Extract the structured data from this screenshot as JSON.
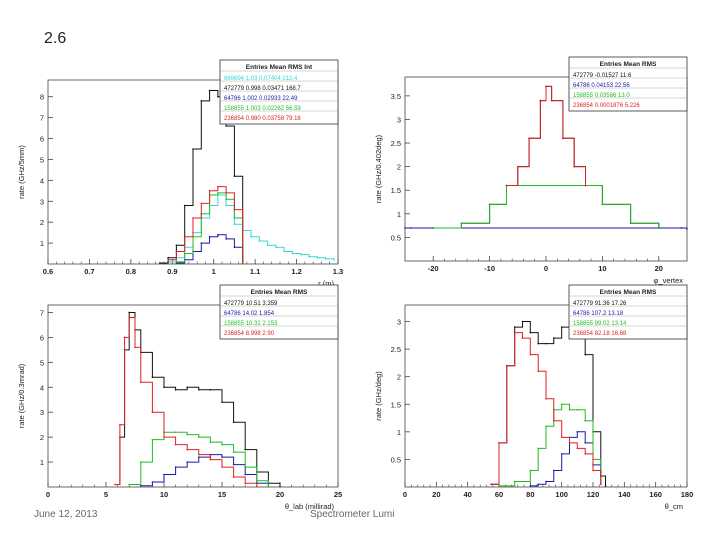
{
  "slide": {
    "title": "2.6",
    "date": "June 12, 2013",
    "footer_center": "Spectrometer Lumi"
  },
  "chart_data": [
    {
      "type": "line",
      "ylabel": "rate (GHz/5mm)",
      "xlabel": "r (m)",
      "xlim": [
        0.6,
        1.3
      ],
      "ylim": [
        0,
        8.8
      ],
      "xticks": [
        "0.6",
        "0.7",
        "0.8",
        "0.9",
        "1",
        "1.1",
        "1.2",
        "1.3"
      ],
      "yticks": [
        "1",
        "2",
        "3",
        "4",
        "5",
        "6",
        "7",
        "8"
      ],
      "stats_header": "Entries  Mean  RMS  Int",
      "series": [
        {
          "name": "cyan",
          "color": "#38d8d8",
          "stats": "669694  1.03  0.07404  212.4",
          "x": [
            0.89,
            0.91,
            0.93,
            0.95,
            0.97,
            0.99,
            1.01,
            1.03,
            1.05,
            1.07,
            1.09,
            1.11,
            1.13,
            1.15,
            1.17,
            1.19,
            1.21,
            1.23,
            1.25,
            1.27,
            1.29
          ],
          "y": [
            0.1,
            0.3,
            0.8,
            1.5,
            2.2,
            2.8,
            3.3,
            2.8,
            1.9,
            1.6,
            1.3,
            1.1,
            0.9,
            0.8,
            0.6,
            0.5,
            0.45,
            0.35,
            0.3,
            0.25,
            0.2
          ]
        },
        {
          "name": "black",
          "color": "#111111",
          "stats": "472779  0.998  0.03471  168.7",
          "x": [
            0.87,
            0.89,
            0.91,
            0.93,
            0.95,
            0.97,
            0.99,
            1.01,
            1.03,
            1.05,
            1.07
          ],
          "y": [
            0.05,
            0.3,
            0.9,
            2.8,
            5.5,
            7.8,
            8.3,
            8.0,
            6.6,
            4.2,
            0.1
          ]
        },
        {
          "name": "blue",
          "color": "#1a1aa8",
          "stats": "64786  1.002  0.02933  22.49",
          "x": [
            0.91,
            0.93,
            0.95,
            0.97,
            0.99,
            1.01,
            1.03,
            1.05,
            1.07
          ],
          "y": [
            0.05,
            0.2,
            0.6,
            1.0,
            1.3,
            1.4,
            1.2,
            0.8,
            0.05
          ]
        },
        {
          "name": "green",
          "color": "#22bb22",
          "stats": "158855  1.003  0.02262  56.59",
          "x": [
            0.91,
            0.93,
            0.95,
            0.97,
            0.99,
            1.01,
            1.03,
            1.05,
            1.07
          ],
          "y": [
            0.1,
            0.5,
            1.3,
            2.4,
            3.3,
            3.4,
            3.1,
            2.2,
            0.05
          ]
        },
        {
          "name": "red",
          "color": "#dd2222",
          "stats": "236854  0.980  0.03758  79.16",
          "x": [
            0.89,
            0.91,
            0.93,
            0.95,
            0.97,
            0.99,
            1.01,
            1.03,
            1.05,
            1.07
          ],
          "y": [
            0.2,
            0.6,
            1.3,
            2.2,
            2.9,
            3.5,
            3.7,
            3.4,
            2.6,
            0.05
          ]
        }
      ]
    },
    {
      "type": "line",
      "ylabel": "rate (GHz/0.402deg)",
      "xlabel": "φ_vertex",
      "xlim": [
        -25,
        25
      ],
      "ylim": [
        0,
        3.9
      ],
      "xticks": [
        "-20",
        "-10",
        "0",
        "10",
        "20"
      ],
      "yticks": [
        "0.5",
        "1",
        "1.5",
        "2",
        "2.5",
        "3",
        "3.5"
      ],
      "stats_header": "Entries  Mean  RMS",
      "series": [
        {
          "name": "black",
          "color": "#111111",
          "stats": "472779  -0.01527  11.6",
          "x": [
            -24,
            -20,
            -15,
            -10,
            -7,
            -5,
            -3,
            -1,
            0,
            1,
            3,
            5,
            7,
            10,
            15,
            20,
            24
          ],
          "y": [
            0.7,
            0.7,
            0.8,
            1.2,
            1.6,
            2.0,
            2.6,
            3.4,
            3.7,
            3.4,
            2.6,
            2.0,
            1.6,
            1.2,
            0.8,
            0.7,
            0.7
          ]
        },
        {
          "name": "blue",
          "color": "#1a1aa8",
          "stats": "64786  0.04153  22.56",
          "x": [
            -25,
            -20,
            20,
            25
          ],
          "y": [
            0.7,
            0.7,
            0.7,
            0.68
          ]
        },
        {
          "name": "green",
          "color": "#22bb22",
          "stats": "158855  0.03586  13.0",
          "x": [
            -20,
            -15,
            -10,
            -7,
            7,
            10,
            15,
            20
          ],
          "y": [
            0.7,
            0.8,
            1.2,
            1.6,
            1.6,
            1.2,
            0.8,
            0.7
          ]
        },
        {
          "name": "red",
          "color": "#dd2222",
          "stats": "236854  0.0001876  5.226",
          "x": [
            -7,
            -5,
            -3,
            -1,
            0,
            1,
            3,
            5,
            7
          ],
          "y": [
            1.6,
            2.0,
            2.6,
            3.4,
            3.7,
            3.4,
            2.6,
            2.0,
            1.6
          ]
        }
      ]
    },
    {
      "type": "line",
      "ylabel": "rate (GHz/0.3mrad)",
      "xlabel": "θ_lab (millirad)",
      "xlim": [
        0,
        25
      ],
      "ylim": [
        0,
        7.3
      ],
      "xticks": [
        "0",
        "5",
        "10",
        "15",
        "20",
        "25"
      ],
      "yticks": [
        "1",
        "2",
        "3",
        "4",
        "5",
        "6",
        "7"
      ],
      "stats_header": "Entries  Mean  RMS",
      "series": [
        {
          "name": "black",
          "color": "#111111",
          "stats": "472779  10.51  3.359",
          "x": [
            5.8,
            6.2,
            6.6,
            7.0,
            7.5,
            8.0,
            9,
            10,
            11,
            12,
            13,
            14,
            15,
            16,
            17,
            18,
            19,
            20
          ],
          "y": [
            0.1,
            2.0,
            5.5,
            7.0,
            6.3,
            5.4,
            4.4,
            4.0,
            3.9,
            4.0,
            3.9,
            3.9,
            3.4,
            2.6,
            1.5,
            0.6,
            0.15,
            0.02
          ]
        },
        {
          "name": "blue",
          "color": "#1a1aa8",
          "stats": "64786  14.02  1.854",
          "x": [
            8,
            9,
            10,
            11,
            12,
            13,
            14,
            15,
            16,
            17,
            18,
            19
          ],
          "y": [
            0.05,
            0.2,
            0.5,
            0.8,
            1.0,
            1.2,
            1.3,
            1.2,
            0.9,
            0.5,
            0.15,
            0.02
          ]
        },
        {
          "name": "green",
          "color": "#22bb22",
          "stats": "158855  10.31  2.153",
          "x": [
            7,
            8,
            9,
            10,
            11,
            12,
            13,
            14,
            15,
            16,
            17,
            18,
            19
          ],
          "y": [
            0.1,
            1.0,
            1.9,
            2.2,
            2.2,
            2.1,
            2.0,
            1.8,
            1.7,
            1.4,
            0.8,
            0.25,
            0.02
          ]
        },
        {
          "name": "red",
          "color": "#dd2222",
          "stats": "236854  8.998  2.90",
          "x": [
            5.8,
            6.2,
            6.6,
            7.0,
            7.5,
            8.0,
            9,
            10,
            11,
            12,
            13,
            14,
            15,
            16,
            17,
            18
          ],
          "y": [
            0.1,
            2.5,
            6.0,
            6.8,
            5.6,
            4.2,
            3.0,
            2.0,
            1.7,
            1.5,
            1.3,
            1.1,
            0.8,
            0.4,
            0.15,
            0.02
          ]
        }
      ]
    },
    {
      "type": "line",
      "ylabel": "rate (GHz/deg)",
      "xlabel": "θ_cm",
      "xlim": [
        0,
        180
      ],
      "ylim": [
        0,
        3.3
      ],
      "xticks": [
        "0",
        "20",
        "40",
        "60",
        "80",
        "100",
        "120",
        "140",
        "160",
        "180"
      ],
      "yticks": [
        "0.5",
        "1",
        "1.5",
        "2",
        "2.5",
        "3"
      ],
      "stats_header": "Entries  Mean  RMS",
      "series": [
        {
          "name": "black",
          "color": "#111111",
          "stats": "472779  91.36  17.26",
          "x": [
            55,
            60,
            65,
            70,
            75,
            80,
            85,
            90,
            95,
            100,
            105,
            110,
            115,
            120,
            125,
            128
          ],
          "y": [
            0.05,
            0.8,
            2.2,
            2.9,
            3.0,
            2.8,
            2.6,
            2.6,
            2.7,
            2.9,
            3.1,
            3.0,
            2.4,
            1.0,
            0.2,
            0.02
          ]
        },
        {
          "name": "blue",
          "color": "#1a1aa8",
          "stats": "64786  107.2  13.18",
          "x": [
            80,
            85,
            90,
            95,
            100,
            105,
            110,
            115,
            120,
            125
          ],
          "y": [
            0.02,
            0.05,
            0.1,
            0.3,
            0.6,
            0.9,
            1.0,
            0.8,
            0.4,
            0.05
          ]
        },
        {
          "name": "green",
          "color": "#22bb22",
          "stats": "158855  99.02  13.14",
          "x": [
            60,
            70,
            80,
            85,
            90,
            95,
            100,
            105,
            110,
            115,
            120,
            125
          ],
          "y": [
            0.02,
            0.1,
            0.3,
            0.7,
            1.1,
            1.4,
            1.5,
            1.4,
            1.4,
            1.2,
            0.5,
            0.05
          ]
        },
        {
          "name": "red",
          "color": "#dd2222",
          "stats": "236854  82.18  16.68",
          "x": [
            55,
            60,
            65,
            70,
            75,
            80,
            85,
            90,
            95,
            100,
            105,
            110,
            115,
            120,
            125
          ],
          "y": [
            0.05,
            0.8,
            2.2,
            2.8,
            2.7,
            2.4,
            2.1,
            1.6,
            1.2,
            0.9,
            0.8,
            0.7,
            0.6,
            0.3,
            0.05
          ]
        }
      ]
    }
  ]
}
